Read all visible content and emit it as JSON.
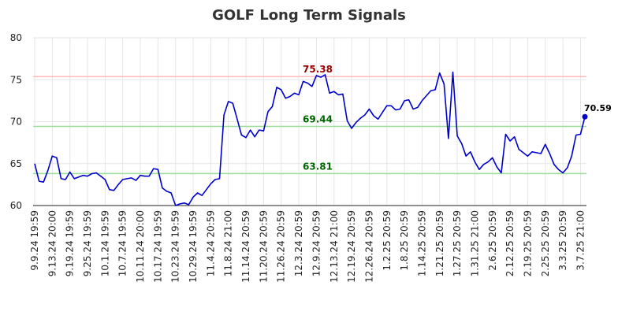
{
  "chart_data": {
    "type": "line",
    "title": "GOLF Long Term Signals",
    "xlabel": "",
    "ylabel": "",
    "ylim": [
      60,
      80
    ],
    "yticks": [
      60,
      65,
      70,
      75,
      80
    ],
    "grid": true,
    "x_tick_labels": [
      "9.9.24 19:59",
      "9.13.24 20:00",
      "9.19.24 19:59",
      "9.25.24 19:59",
      "10.1.24 19:59",
      "10.7.24 19:59",
      "10.11.24 20:00",
      "10.17.24 19:59",
      "10.23.24 19:59",
      "10.29.24 19:59",
      "11.4.24 20:59",
      "11.8.24 21:00",
      "11.14.24 20:59",
      "11.20.24 20:59",
      "11.26.24 20:59",
      "12.3.24 20:59",
      "12.9.24 20:59",
      "12.13.24 21:00",
      "12.19.24 20:59",
      "12.26.24 20:59",
      "1.2.25 20:59",
      "1.8.25 20:59",
      "1.14.25 20:59",
      "1.21.25 20:59",
      "1.27.25 20:59",
      "1.31.25 21:00",
      "2.6.25 20:59",
      "2.12.25 20:59",
      "2.19.25 20:59",
      "2.25.25 20:59",
      "3.3.25 20:59",
      "3.7.25 21:00"
    ],
    "series": [
      {
        "color": "#0000cc",
        "values": [
          65.0,
          62.9,
          62.8,
          64.2,
          65.9,
          65.7,
          63.2,
          63.1,
          64.0,
          63.2,
          63.4,
          63.6,
          63.5,
          63.8,
          63.9,
          63.5,
          63.1,
          61.9,
          61.8,
          62.5,
          63.1,
          63.2,
          63.3,
          63.0,
          63.6,
          63.5,
          63.5,
          64.4,
          64.3,
          62.1,
          61.7,
          61.5,
          60.0,
          60.2,
          60.3,
          60.1,
          61.0,
          61.5,
          61.2,
          61.9,
          62.6,
          63.1,
          63.2,
          70.8,
          72.4,
          72.2,
          70.3,
          68.4,
          68.1,
          69.0,
          68.2,
          69.0,
          68.9,
          71.2,
          71.8,
          74.1,
          73.8,
          72.8,
          73.0,
          73.4,
          73.2,
          74.8,
          74.6,
          74.2,
          75.5,
          75.3,
          75.6,
          73.4,
          73.6,
          73.2,
          73.3,
          70.1,
          69.2,
          69.9,
          70.4,
          70.8,
          71.5,
          70.7,
          70.3,
          71.1,
          71.9,
          71.9,
          71.4,
          71.5,
          72.5,
          72.6,
          71.5,
          71.7,
          72.5,
          73.1,
          73.7,
          73.8,
          75.8,
          74.5,
          68.0,
          75.9,
          68.3,
          67.4,
          65.9,
          66.4,
          65.2,
          64.3,
          64.9,
          65.2,
          65.7,
          64.6,
          63.9,
          68.5,
          67.7,
          68.2,
          66.7,
          66.3,
          65.9,
          66.4,
          66.3,
          66.2,
          67.3,
          66.2,
          64.9,
          64.3,
          63.9,
          64.5,
          65.9,
          68.4,
          68.5,
          70.59
        ]
      }
    ],
    "reference_lines": [
      {
        "value": 75.38,
        "label": "75.38",
        "line_color": "#ffbbbb",
        "label_color": "#990000"
      },
      {
        "value": 69.44,
        "label": "69.44",
        "line_color": "#99dd99",
        "label_color": "#006600"
      },
      {
        "value": 63.81,
        "label": "63.81",
        "line_color": "#99dd99",
        "label_color": "#006600"
      }
    ],
    "last_value_label": "70.59",
    "colors": {
      "line": "#0000cc",
      "marker": "#0000cc",
      "grid": "#e6e6e6",
      "axis": "#222222"
    }
  }
}
